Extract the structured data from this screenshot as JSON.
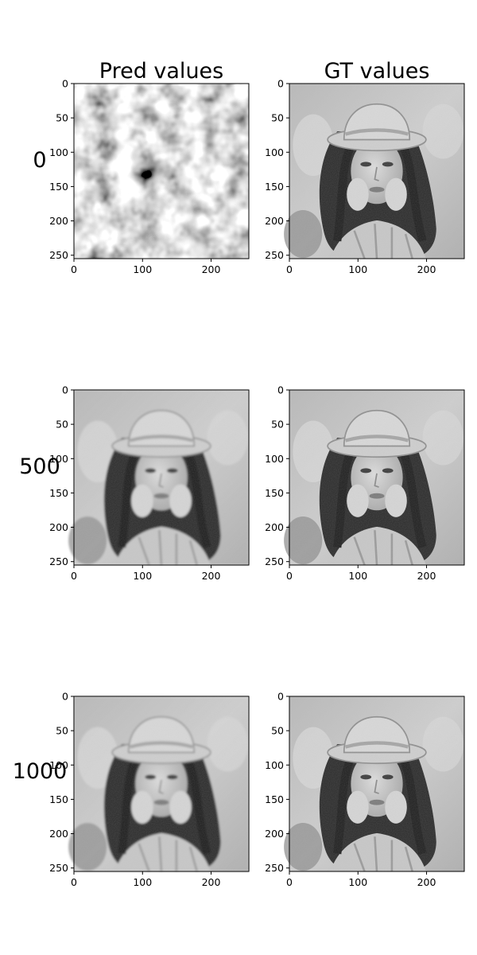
{
  "chart_data": {
    "type": "image-grid",
    "column_titles": [
      "Pred values",
      "GT values"
    ],
    "row_labels": [
      "0",
      "500",
      "1000"
    ],
    "xlim": [
      0,
      255
    ],
    "ylim": [
      255,
      0
    ],
    "xticks": [
      "0",
      "100",
      "200"
    ],
    "yticks": [
      "0",
      "50",
      "100",
      "150",
      "200",
      "250"
    ],
    "grid": false,
    "panels": [
      {
        "row": "0",
        "column": "Pred values",
        "content": "noise"
      },
      {
        "row": "0",
        "column": "GT values",
        "content": "portrait"
      },
      {
        "row": "500",
        "column": "Pred values",
        "content": "portrait"
      },
      {
        "row": "500",
        "column": "GT values",
        "content": "portrait"
      },
      {
        "row": "1000",
        "column": "Pred values",
        "content": "portrait"
      },
      {
        "row": "1000",
        "column": "GT values",
        "content": "portrait"
      }
    ]
  }
}
